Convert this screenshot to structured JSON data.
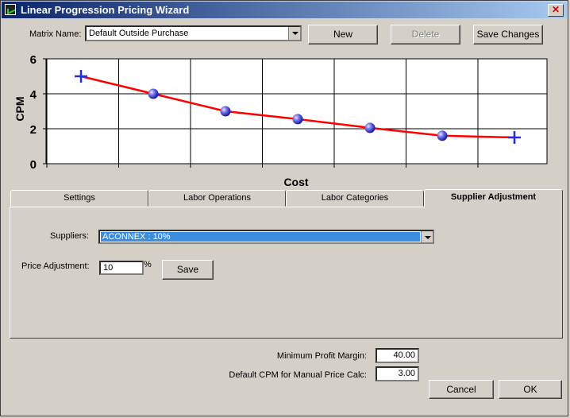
{
  "window": {
    "title": "Linear Progression Pricing Wizard",
    "close_glyph": "✕"
  },
  "header": {
    "matrix_label": "Matrix Name:",
    "matrix_value": "Default Outside Purchase",
    "new_label": "New",
    "delete_label": "Delete",
    "save_changes_label": "Save Changes"
  },
  "chart_data": {
    "type": "line",
    "xlabel": "Cost",
    "ylabel": "CPM",
    "ylim": [
      0,
      6
    ],
    "yticks": [
      0,
      2,
      4,
      6
    ],
    "grid": true,
    "x": [
      0,
      1,
      2,
      3,
      4,
      5,
      6
    ],
    "y": [
      5.0,
      4.0,
      3.0,
      2.55,
      2.05,
      1.6,
      1.5
    ],
    "markers": [
      "cross",
      "sphere",
      "sphere",
      "sphere",
      "sphere",
      "sphere",
      "cross"
    ],
    "line_color": "#ff0000",
    "marker_color": "#2a2ae0"
  },
  "tabs": [
    {
      "label": "Settings"
    },
    {
      "label": "Labor Operations"
    },
    {
      "label": "Labor Categories"
    },
    {
      "label": "Supplier Adjustment",
      "active": true
    }
  ],
  "supplier_panel": {
    "suppliers_label": "Suppliers:",
    "supplier_value": "ACONNEX : 10%",
    "price_adjustment_label": "Price Adjustment:",
    "price_adjustment_value": "10",
    "percent_sign": "%",
    "save_label": "Save"
  },
  "footer": {
    "min_profit_label": "Minimum Profit Margin:",
    "min_profit_value": "40.00",
    "default_cpm_label": "Default CPM for Manual Price Calc:",
    "default_cpm_value": "3.00",
    "cancel_label": "Cancel",
    "ok_label": "OK"
  }
}
